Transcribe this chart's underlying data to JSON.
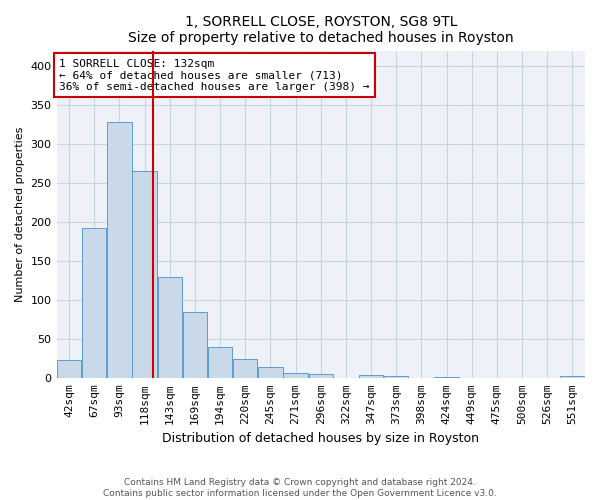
{
  "title1": "1, SORRELL CLOSE, ROYSTON, SG8 9TL",
  "title2": "Size of property relative to detached houses in Royston",
  "xlabel": "Distribution of detached houses by size in Royston",
  "ylabel": "Number of detached properties",
  "categories": [
    "42sqm",
    "67sqm",
    "93sqm",
    "118sqm",
    "143sqm",
    "169sqm",
    "194sqm",
    "220sqm",
    "245sqm",
    "271sqm",
    "296sqm",
    "322sqm",
    "347sqm",
    "373sqm",
    "398sqm",
    "424sqm",
    "449sqm",
    "475sqm",
    "500sqm",
    "526sqm",
    "551sqm"
  ],
  "values": [
    23,
    193,
    328,
    265,
    130,
    85,
    40,
    25,
    14,
    7,
    5,
    0,
    4,
    3,
    0,
    2,
    0,
    0,
    0,
    0,
    3
  ],
  "bar_color": "#c9d9e8",
  "bar_edge_color": "#5b9bd5",
  "vline_x_index": 3.32,
  "vline_color": "#cc0000",
  "annotation_text": "1 SORRELL CLOSE: 132sqm\n← 64% of detached houses are smaller (713)\n36% of semi-detached houses are larger (398) →",
  "annotation_box_color": "#ffffff",
  "annotation_box_edge_color": "#cc0000",
  "grid_color": "#c8d4e0",
  "background_color": "#eef2f8",
  "ylim": [
    0,
    420
  ],
  "yticks": [
    0,
    50,
    100,
    150,
    200,
    250,
    300,
    350,
    400
  ],
  "title_fontsize": 10,
  "xlabel_fontsize": 9,
  "ylabel_fontsize": 8,
  "tick_fontsize": 8,
  "annot_fontsize": 8,
  "footer1": "Contains HM Land Registry data © Crown copyright and database right 2024.",
  "footer2": "Contains public sector information licensed under the Open Government Licence v3.0.",
  "footer_fontsize": 6.5
}
